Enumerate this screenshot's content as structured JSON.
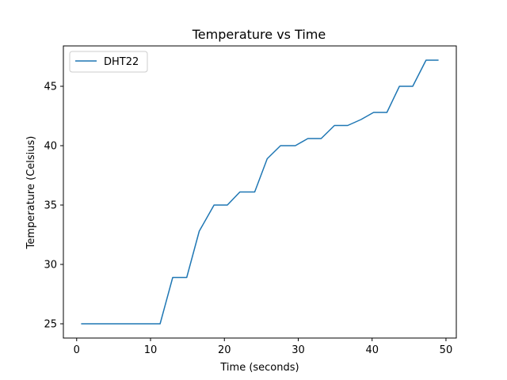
{
  "chart_data": {
    "type": "line",
    "title": "Temperature vs Time",
    "xlabel": "Time (seconds)",
    "ylabel": "Temperature (Celsius)",
    "xlim": [
      -1.8,
      51.4
    ],
    "ylim": [
      23.8,
      48.4
    ],
    "xticks": [
      0,
      10,
      20,
      30,
      40,
      50
    ],
    "yticks": [
      25,
      30,
      35,
      40,
      45
    ],
    "grid": false,
    "legend": "top-left",
    "series": [
      {
        "name": "DHT22",
        "color": "#1f77b4",
        "x": [
          0.6,
          11.3,
          13.0,
          14.9,
          16.6,
          18.6,
          20.4,
          22.1,
          24.1,
          25.8,
          27.6,
          29.6,
          31.3,
          33.1,
          34.9,
          36.7,
          38.5,
          40.2,
          42.0,
          43.7,
          45.5,
          47.3,
          49.0
        ],
        "values": [
          25.0,
          25.0,
          28.9,
          28.9,
          32.8,
          35.0,
          35.0,
          36.1,
          36.1,
          38.9,
          40.0,
          40.0,
          40.6,
          40.6,
          41.7,
          41.7,
          42.2,
          42.8,
          42.8,
          45.0,
          45.0,
          47.2,
          47.2
        ]
      }
    ]
  }
}
